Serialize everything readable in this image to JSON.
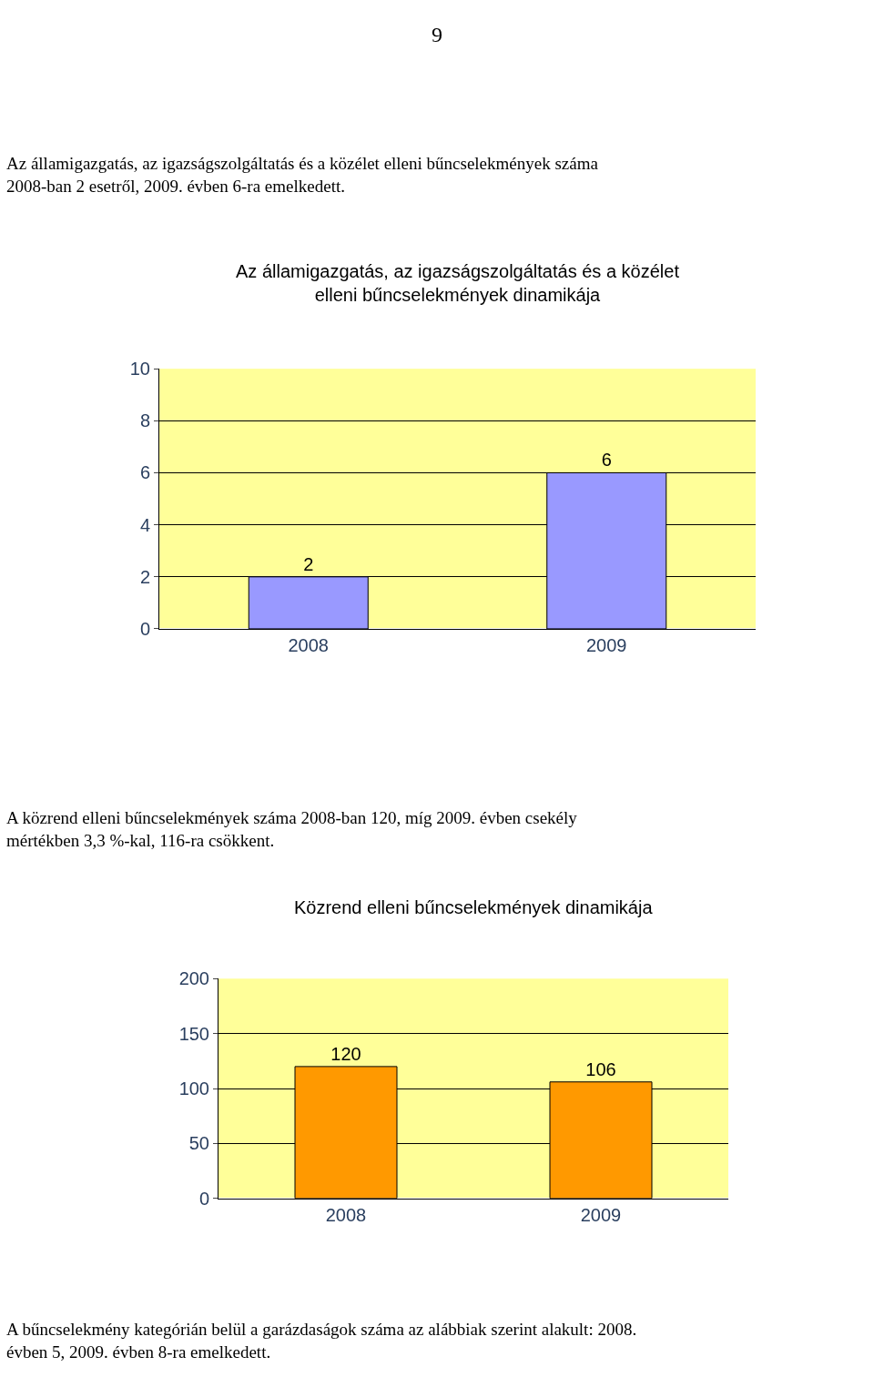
{
  "chart_data": [
    {
      "type": "bar",
      "title": "Az államigazgatás, az igazságszolgáltatás és a közélet\nelleni bűncselekmények dinamikája",
      "categories": [
        "2008",
        "2009"
      ],
      "values": [
        2,
        6
      ],
      "color": "#9999ff",
      "ylim": [
        0,
        10
      ],
      "yticks": [
        0,
        2,
        4,
        6,
        8,
        10
      ],
      "grid": "y",
      "data_labels": true,
      "annotations": [
        "9",
        "Az államigazgatás, az igazságszolgáltatás és a közélet elleni bűncselekmények száma\n2008-ban 2 esetről, 2009. évben 6-ra emelkedett."
      ]
    },
    {
      "type": "bar",
      "title": "Közrend elleni bűncselekmények dinamikája",
      "categories": [
        "2008",
        "2009"
      ],
      "values": [
        120,
        106
      ],
      "color": "#ff9900",
      "ylim": [
        0,
        200
      ],
      "yticks": [
        0,
        50,
        100,
        150,
        200
      ],
      "grid": "y",
      "data_labels": true,
      "annotations": [
        "A közrend elleni bűncselekmények száma 2008-ban 120, míg 2009. évben csekély\nmértékben 3,3 %-kal, 116-ra csökkent.",
        "A bűncselekmény kategórián belül a garázdaságok száma az alábbiak szerint alakult: 2008.\névben 5, 2009. évben 8-ra emelkedett."
      ]
    }
  ]
}
